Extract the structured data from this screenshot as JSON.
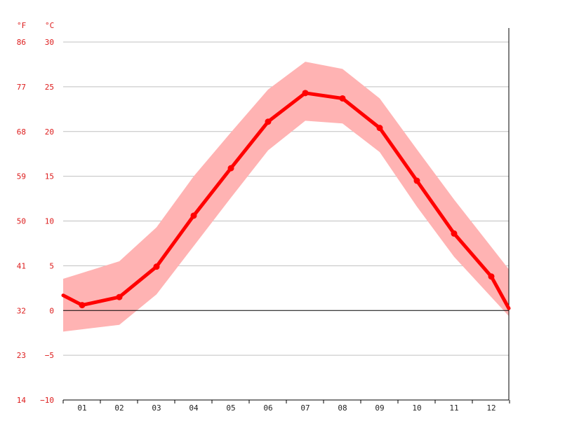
{
  "chart_data": {
    "type": "line",
    "title": "",
    "xlabel": "",
    "ylabel": "",
    "left_unit": "°F",
    "right_unit": "°C",
    "categories": [
      "01",
      "02",
      "03",
      "04",
      "05",
      "06",
      "07",
      "08",
      "09",
      "10",
      "11",
      "12"
    ],
    "ylim_c": [
      -10,
      30
    ],
    "yticks_c": [
      30,
      25,
      20,
      15,
      10,
      5,
      0,
      -5,
      -10
    ],
    "ytick_labels_c": [
      "30",
      "25",
      "20",
      "15",
      "10",
      "5",
      "0",
      "−5",
      "−10"
    ],
    "ytick_labels_f": [
      "86",
      "77",
      "68",
      "59",
      "50",
      "41",
      "32",
      "23",
      "14"
    ],
    "grid": true,
    "series": [
      {
        "values": [
          0.6,
          1.5,
          4.9,
          10.6,
          15.9,
          21.1,
          24.3,
          23.7,
          20.4,
          14.5,
          8.6,
          3.8
        ]
      }
    ],
    "band": {
      "upper": [
        4.2,
        5.5,
        9.3,
        15.0,
        19.9,
        24.7,
        27.8,
        27.0,
        23.7,
        18.0,
        12.4,
        7.1
      ],
      "lower": [
        -2.1,
        -1.6,
        1.8,
        7.2,
        12.6,
        17.9,
        21.2,
        20.9,
        17.7,
        11.6,
        6.0,
        1.5
      ]
    },
    "colors": {
      "line": "#ff0000",
      "band": "#ffb3b3",
      "grid": "#c0c0c0",
      "axis": "#000000",
      "tick_text": "#dd1c1c"
    }
  }
}
